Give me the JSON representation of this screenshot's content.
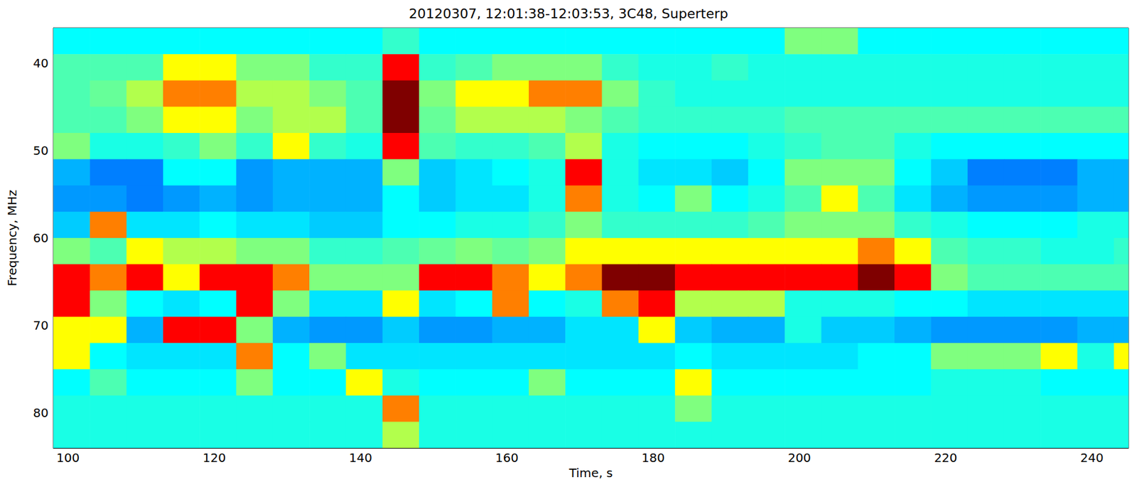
{
  "chart_data": {
    "type": "heatmap",
    "title": "20120307, 12:01:38-12:03:53, 3C48, Superterp",
    "x_label": "Time, s",
    "y_label": "Frequency, MHz",
    "xlim": [
      98,
      245
    ],
    "ylim": [
      36,
      84
    ],
    "xticks": [
      100,
      120,
      140,
      160,
      180,
      200,
      220,
      240
    ],
    "yticks": [
      40,
      50,
      60,
      70,
      80
    ],
    "x_edges": [
      98,
      103,
      108,
      113,
      118,
      123,
      128,
      133,
      138,
      143,
      148,
      153,
      158,
      163,
      168,
      173,
      178,
      183,
      188,
      193,
      198,
      203,
      208,
      213,
      218,
      223,
      228,
      233,
      238,
      243,
      245
    ],
    "y_edges": [
      36,
      39,
      42,
      45,
      48,
      51,
      54,
      57,
      60,
      63,
      66,
      69,
      72,
      75,
      78,
      81,
      84
    ],
    "zlim": [
      0,
      4
    ],
    "z": [
      [
        1.5,
        1.5,
        1.5,
        1.5,
        1.5,
        1.5,
        1.5,
        1.5,
        1.5,
        1.7,
        1.5,
        1.5,
        1.5,
        1.5,
        1.5,
        1.5,
        1.5,
        1.5,
        1.5,
        1.5,
        2,
        2,
        1.5,
        1.5,
        1.5,
        1.5,
        1.5,
        1.5,
        1.5,
        1.5
      ],
      [
        1.8,
        1.8,
        1.8,
        2.5,
        2.5,
        2,
        2,
        1.7,
        1.7,
        3.5,
        1.7,
        1.8,
        2,
        2,
        2,
        1.7,
        1.6,
        1.6,
        1.7,
        1.6,
        1.6,
        1.6,
        1.6,
        1.6,
        1.6,
        1.6,
        1.6,
        1.6,
        1.6,
        1.6
      ],
      [
        1.8,
        1.9,
        2.2,
        3,
        3,
        2.2,
        2.2,
        2,
        1.8,
        4,
        2,
        2.5,
        2.5,
        3,
        3,
        2,
        1.7,
        1.6,
        1.6,
        1.6,
        1.6,
        1.6,
        1.6,
        1.6,
        1.6,
        1.6,
        1.6,
        1.6,
        1.6,
        1.6
      ],
      [
        1.8,
        1.8,
        2,
        2.5,
        2.5,
        2,
        2.2,
        2.2,
        1.8,
        4,
        1.9,
        2.2,
        2.2,
        2.2,
        2,
        1.8,
        1.7,
        1.7,
        1.7,
        1.7,
        1.8,
        1.8,
        1.8,
        1.8,
        1.8,
        1.8,
        1.8,
        1.8,
        1.8,
        1.8
      ],
      [
        2,
        1.6,
        1.6,
        1.7,
        2,
        1.7,
        2.5,
        1.7,
        1.6,
        3.5,
        1.8,
        1.7,
        1.7,
        1.8,
        2.2,
        1.6,
        1.5,
        1.5,
        1.5,
        1.6,
        1.7,
        1.8,
        1.8,
        1.6,
        1.5,
        1.5,
        1.5,
        1.5,
        1.5,
        1.5
      ],
      [
        1.2,
        1.0,
        1.0,
        1.5,
        1.5,
        1.1,
        1.2,
        1.2,
        1.2,
        2,
        1.3,
        1.4,
        1.5,
        1.6,
        3.5,
        1.6,
        1.4,
        1.4,
        1.3,
        1.5,
        2,
        2,
        2,
        1.5,
        1.3,
        1.0,
        1.0,
        1.0,
        1.2,
        1.2
      ],
      [
        1.1,
        1.1,
        1.0,
        1.1,
        1.2,
        1.1,
        1.2,
        1.2,
        1.2,
        1.5,
        1.3,
        1.4,
        1.4,
        1.6,
        3,
        1.6,
        1.5,
        2,
        1.5,
        1.6,
        1.8,
        2.5,
        1.8,
        1.4,
        1.2,
        1.1,
        1.1,
        1.1,
        1.2,
        1.2
      ],
      [
        1.3,
        3,
        1.4,
        1.4,
        1.5,
        1.4,
        1.4,
        1.3,
        1.3,
        1.5,
        1.5,
        1.6,
        1.6,
        1.7,
        2,
        1.7,
        1.7,
        1.7,
        1.7,
        1.8,
        2,
        2,
        2,
        1.7,
        1.6,
        1.5,
        1.5,
        1.5,
        1.6,
        1.6
      ],
      [
        2,
        1.8,
        2.5,
        2.2,
        2.2,
        2,
        2,
        1.7,
        1.7,
        1.8,
        1.9,
        2,
        1.9,
        2,
        2.5,
        2.5,
        2.5,
        2.5,
        2.5,
        2.5,
        2.5,
        2.5,
        3,
        2.5,
        1.8,
        1.7,
        1.7,
        1.6,
        1.6,
        1.7
      ],
      [
        3.5,
        3,
        3.5,
        2.5,
        3.5,
        3.5,
        3,
        2,
        2,
        2,
        3.5,
        3.5,
        3,
        2.5,
        3,
        4,
        4,
        3.5,
        3.5,
        3.5,
        3.5,
        3.5,
        4,
        3.5,
        2,
        1.8,
        1.8,
        1.8,
        1.8,
        1.8
      ],
      [
        3.5,
        2,
        1.5,
        1.4,
        1.5,
        3.5,
        2,
        1.4,
        1.4,
        2.5,
        1.4,
        1.5,
        3,
        1.5,
        1.6,
        3,
        3.5,
        2.2,
        2.2,
        2.2,
        1.6,
        1.6,
        1.6,
        1.5,
        1.5,
        1.4,
        1.4,
        1.4,
        1.4,
        1.4
      ],
      [
        2.5,
        2.5,
        1.2,
        3.5,
        3.5,
        2,
        1.2,
        1.1,
        1.1,
        1.3,
        1.1,
        1.1,
        1.2,
        1.2,
        1.4,
        1.4,
        2.5,
        1.3,
        1.2,
        1.2,
        1.6,
        1.3,
        1.3,
        1.2,
        1.1,
        1.1,
        1.1,
        1.1,
        1.2,
        1.2
      ],
      [
        2.5,
        1.5,
        1.4,
        1.4,
        1.4,
        3,
        1.5,
        2,
        1.4,
        1.4,
        1.4,
        1.4,
        1.4,
        1.4,
        1.4,
        1.4,
        1.4,
        1.5,
        1.4,
        1.4,
        1.4,
        1.4,
        1.5,
        1.5,
        2,
        2,
        2,
        2.5,
        1.6,
        2.5
      ],
      [
        1.5,
        1.8,
        1.5,
        1.5,
        1.5,
        2,
        1.5,
        1.5,
        2.5,
        1.6,
        1.5,
        1.5,
        1.5,
        2,
        1.5,
        1.5,
        1.5,
        2.5,
        1.5,
        1.5,
        1.5,
        1.5,
        1.5,
        1.5,
        1.6,
        1.6,
        1.6,
        1.5,
        1.5,
        1.5
      ],
      [
        1.6,
        1.6,
        1.6,
        1.6,
        1.6,
        1.6,
        1.6,
        1.6,
        1.6,
        3,
        1.6,
        1.6,
        1.6,
        1.6,
        1.6,
        1.6,
        1.6,
        2,
        1.6,
        1.6,
        1.6,
        1.6,
        1.6,
        1.6,
        1.6,
        1.6,
        1.6,
        1.6,
        1.6,
        1.6
      ],
      [
        1.6,
        1.6,
        1.6,
        1.6,
        1.6,
        1.6,
        1.6,
        1.6,
        1.6,
        2.2,
        1.6,
        1.6,
        1.6,
        1.6,
        1.6,
        1.6,
        1.6,
        1.6,
        1.6,
        1.6,
        1.6,
        1.6,
        1.6,
        1.6,
        1.6,
        1.6,
        1.6,
        1.6,
        1.6,
        1.6
      ]
    ]
  }
}
